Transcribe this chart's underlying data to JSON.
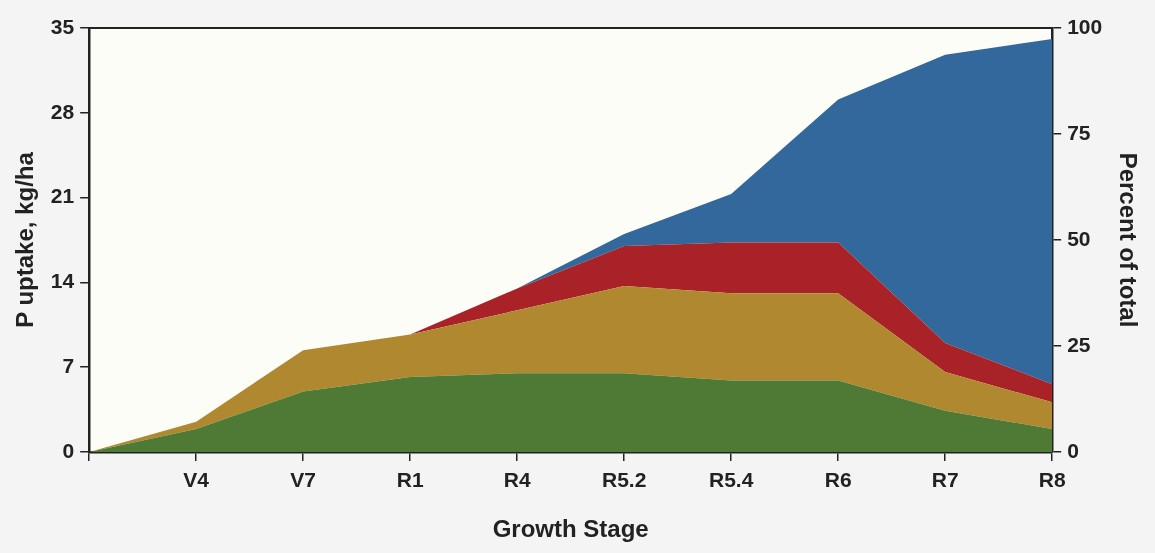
{
  "chart_data": {
    "type": "area",
    "stacked": true,
    "xlabel": "Growth Stage",
    "ylabel": "P uptake, kg/ha",
    "y2label": "Percent of total",
    "categories": [
      null,
      "V4",
      "V7",
      "R1",
      "R4",
      "R5.2",
      "R5.4",
      "R6",
      "R7",
      "R8"
    ],
    "ylim": [
      0,
      35
    ],
    "yticks": [
      0,
      7,
      14,
      21,
      28,
      35
    ],
    "y2lim": [
      0,
      100
    ],
    "y2ticks": [
      0,
      25,
      50,
      75,
      100
    ],
    "grid": false,
    "legend": false,
    "series": [
      {
        "color": "#4f7a35",
        "values": [
          0,
          1.9,
          5.0,
          6.2,
          6.5,
          6.5,
          5.9,
          5.9,
          3.4,
          1.9
        ]
      },
      {
        "color": "#b08830",
        "values": [
          0,
          0.6,
          3.4,
          3.5,
          5.2,
          7.2,
          7.2,
          7.2,
          3.2,
          2.2
        ]
      },
      {
        "color": "#a82228",
        "values": [
          0,
          0,
          0,
          0,
          1.8,
          3.3,
          4.2,
          4.2,
          2.4,
          1.5
        ]
      },
      {
        "color": "#33689d",
        "values": [
          0,
          0,
          0,
          0,
          0,
          1.0,
          4.0,
          11.8,
          23.8,
          28.5
        ]
      }
    ]
  }
}
